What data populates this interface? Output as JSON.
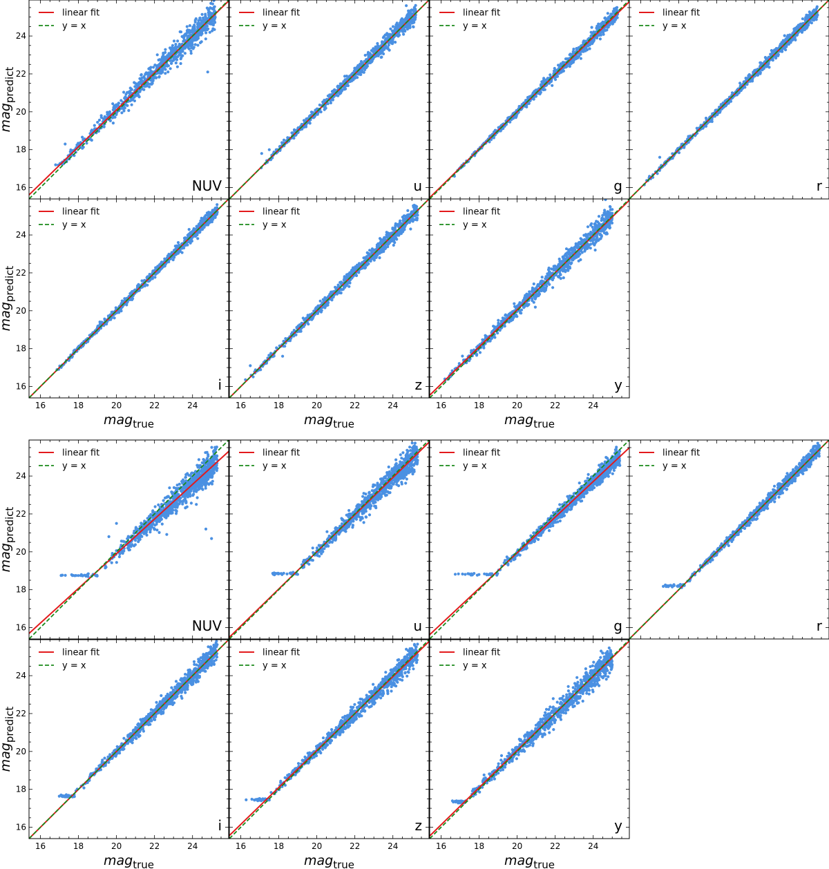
{
  "figure": {
    "xlabel_main": "mag",
    "xlabel_sub": "true",
    "ylabel_main": "mag",
    "ylabel_sub": "predict",
    "legend": {
      "fit_label": "linear fit",
      "identity_label": "y = x",
      "position": "upper-left"
    },
    "colors": {
      "points": "#4a90e2",
      "fit_line": "#e31a1c",
      "identity_line": "#1a8a1a",
      "axes": "#000000"
    },
    "axis_ticks": [
      "16",
      "18",
      "20",
      "22",
      "24"
    ],
    "scatter_note": "points are a dense cloud along the diagonal; only summary spread is recorded"
  },
  "chart_data": [
    {
      "type": "scatter",
      "group": "top",
      "band": "NUV",
      "title": "",
      "xlim": [
        15.4,
        25.9
      ],
      "ylim": [
        15.4,
        25.9
      ],
      "grid": false,
      "series": [
        {
          "name": "linear fit",
          "kind": "line",
          "slope": 0.975,
          "intercept": 0.6
        },
        {
          "name": "y = x",
          "kind": "line",
          "slope": 1,
          "intercept": 0
        }
      ],
      "spread": 0.55,
      "min_x": 16.8,
      "max_x": 25.2,
      "outliers": [
        [
          17.3,
          18.3
        ],
        [
          18.7,
          18.5
        ],
        [
          24.8,
          22.1
        ],
        [
          16.8,
          17.2
        ]
      ]
    },
    {
      "type": "scatter",
      "group": "top",
      "band": "u",
      "title": "",
      "xlim": [
        15.4,
        25.9
      ],
      "ylim": [
        15.4,
        25.9
      ],
      "grid": false,
      "series": [
        {
          "name": "linear fit",
          "kind": "line",
          "slope": 1.0,
          "intercept": 0.0
        },
        {
          "name": "y = x",
          "kind": "line",
          "slope": 1,
          "intercept": 0
        }
      ],
      "spread": 0.35,
      "min_x": 17.0,
      "max_x": 25.2,
      "outliers": [
        [
          17.1,
          17.8
        ],
        [
          17.5,
          18.0
        ]
      ]
    },
    {
      "type": "scatter",
      "group": "top",
      "band": "g",
      "title": "",
      "xlim": [
        15.4,
        25.9
      ],
      "ylim": [
        15.4,
        25.9
      ],
      "grid": false,
      "series": [
        {
          "name": "linear fit",
          "kind": "line",
          "slope": 0.985,
          "intercept": 0.3
        },
        {
          "name": "y = x",
          "kind": "line",
          "slope": 1,
          "intercept": 0
        }
      ],
      "spread": 0.28,
      "min_x": 16.6,
      "max_x": 25.3,
      "outliers": [
        [
          16.7,
          16.6
        ]
      ]
    },
    {
      "type": "scatter",
      "group": "top",
      "band": "r",
      "title": "",
      "xlim": [
        15.4,
        25.9
      ],
      "ylim": [
        15.4,
        25.9
      ],
      "grid": false,
      "series": [
        {
          "name": "linear fit",
          "kind": "line",
          "slope": 1.0,
          "intercept": 0.0
        },
        {
          "name": "y = x",
          "kind": "line",
          "slope": 1,
          "intercept": 0
        }
      ],
      "spread": 0.25,
      "min_x": 16.0,
      "max_x": 25.3,
      "outliers": [
        [
          17.0,
          17.6
        ]
      ]
    },
    {
      "type": "scatter",
      "group": "top",
      "band": "i",
      "title": "",
      "xlim": [
        15.4,
        25.9
      ],
      "ylim": [
        15.4,
        25.9
      ],
      "grid": false,
      "series": [
        {
          "name": "linear fit",
          "kind": "line",
          "slope": 1.0,
          "intercept": 0.0
        },
        {
          "name": "y = x",
          "kind": "line",
          "slope": 1,
          "intercept": 0
        }
      ],
      "spread": 0.25,
      "min_x": 16.8,
      "max_x": 25.3,
      "outliers": []
    },
    {
      "type": "scatter",
      "group": "top",
      "band": "z",
      "title": "",
      "xlim": [
        15.4,
        25.9
      ],
      "ylim": [
        15.4,
        25.9
      ],
      "grid": false,
      "series": [
        {
          "name": "linear fit",
          "kind": "line",
          "slope": 1.0,
          "intercept": 0.0
        },
        {
          "name": "y = x",
          "kind": "line",
          "slope": 1,
          "intercept": 0
        }
      ],
      "spread": 0.35,
      "min_x": 16.0,
      "max_x": 25.3,
      "outliers": [
        [
          16.5,
          17.1
        ],
        [
          18.2,
          17.6
        ]
      ]
    },
    {
      "type": "scatter",
      "group": "top",
      "band": "y",
      "title": "",
      "xlim": [
        15.4,
        25.9
      ],
      "ylim": [
        15.4,
        25.9
      ],
      "grid": false,
      "series": [
        {
          "name": "linear fit",
          "kind": "line",
          "slope": 0.98,
          "intercept": 0.45
        },
        {
          "name": "y = x",
          "kind": "line",
          "slope": 1,
          "intercept": 0
        }
      ],
      "spread": 0.5,
      "min_x": 16.0,
      "max_x": 25.0,
      "outliers": [
        [
          16.2,
          16.4
        ]
      ]
    },
    {
      "type": "scatter",
      "group": "bottom",
      "band": "NUV",
      "title": "",
      "xlim": [
        15.4,
        25.9
      ],
      "ylim": [
        15.4,
        25.9
      ],
      "grid": false,
      "series": [
        {
          "name": "linear fit",
          "kind": "line",
          "slope": 0.915,
          "intercept": 1.6
        },
        {
          "name": "y = x",
          "kind": "line",
          "slope": 1,
          "intercept": 0
        }
      ],
      "spread": 0.7,
      "min_x": 19.3,
      "max_x": 25.3,
      "floor_y": 18.75,
      "floor_x": [
        16.9,
        19.0
      ],
      "outliers": [
        [
          24.7,
          21.2
        ],
        [
          25.0,
          20.7
        ],
        [
          19.6,
          20.8
        ],
        [
          20.0,
          21.5
        ]
      ]
    },
    {
      "type": "scatter",
      "group": "bottom",
      "band": "u",
      "title": "",
      "xlim": [
        15.4,
        25.9
      ],
      "ylim": [
        15.4,
        25.9
      ],
      "grid": false,
      "series": [
        {
          "name": "linear fit",
          "kind": "line",
          "slope": 0.98,
          "intercept": 0.4
        },
        {
          "name": "y = x",
          "kind": "line",
          "slope": 1,
          "intercept": 0
        }
      ],
      "spread": 0.55,
      "min_x": 19.0,
      "max_x": 25.3,
      "floor_y": 18.85,
      "floor_x": [
        17.2,
        19.0
      ],
      "outliers": []
    },
    {
      "type": "scatter",
      "group": "bottom",
      "band": "g",
      "title": "",
      "xlim": [
        15.4,
        25.9
      ],
      "ylim": [
        15.4,
        25.9
      ],
      "grid": false,
      "series": [
        {
          "name": "linear fit",
          "kind": "line",
          "slope": 0.94,
          "intercept": 1.15
        },
        {
          "name": "y = x",
          "kind": "line",
          "slope": 1,
          "intercept": 0
        }
      ],
      "spread": 0.4,
      "min_x": 19.0,
      "max_x": 25.4,
      "floor_y": 18.8,
      "floor_x": [
        16.7,
        19.0
      ],
      "outliers": []
    },
    {
      "type": "scatter",
      "group": "bottom",
      "band": "r",
      "title": "",
      "xlim": [
        15.4,
        25.9
      ],
      "ylim": [
        15.4,
        25.9
      ],
      "grid": false,
      "series": [
        {
          "name": "linear fit",
          "kind": "line",
          "slope": 1.0,
          "intercept": 0.0
        },
        {
          "name": "y = x",
          "kind": "line",
          "slope": 1,
          "intercept": 0
        }
      ],
      "spread": 0.32,
      "min_x": 18.3,
      "max_x": 25.4,
      "floor_y": 18.2,
      "floor_x": [
        16.9,
        18.3
      ],
      "outliers": []
    },
    {
      "type": "scatter",
      "group": "bottom",
      "band": "i",
      "title": "",
      "xlim": [
        15.4,
        25.9
      ],
      "ylim": [
        15.4,
        25.9
      ],
      "grid": false,
      "series": [
        {
          "name": "linear fit",
          "kind": "line",
          "slope": 1.0,
          "intercept": 0.0
        },
        {
          "name": "y = x",
          "kind": "line",
          "slope": 1,
          "intercept": 0
        }
      ],
      "spread": 0.4,
      "min_x": 17.8,
      "max_x": 25.3,
      "floor_y": 17.65,
      "floor_x": [
        16.9,
        17.8
      ],
      "outliers": []
    },
    {
      "type": "scatter",
      "group": "bottom",
      "band": "z",
      "title": "",
      "xlim": [
        15.4,
        25.9
      ],
      "ylim": [
        15.4,
        25.9
      ],
      "grid": false,
      "series": [
        {
          "name": "linear fit",
          "kind": "line",
          "slope": 0.975,
          "intercept": 0.55
        },
        {
          "name": "y = x",
          "kind": "line",
          "slope": 1,
          "intercept": 0
        }
      ],
      "spread": 0.45,
      "min_x": 17.5,
      "max_x": 25.3,
      "floor_y": 17.45,
      "floor_x": [
        16.0,
        17.5
      ],
      "outliers": []
    },
    {
      "type": "scatter",
      "group": "bottom",
      "band": "y",
      "title": "",
      "xlim": [
        15.4,
        25.9
      ],
      "ylim": [
        15.4,
        25.9
      ],
      "grid": false,
      "series": [
        {
          "name": "linear fit",
          "kind": "line",
          "slope": 0.98,
          "intercept": 0.45
        },
        {
          "name": "y = x",
          "kind": "line",
          "slope": 1,
          "intercept": 0
        }
      ],
      "spread": 0.55,
      "min_x": 17.3,
      "max_x": 25.0,
      "floor_y": 17.35,
      "floor_x": [
        16.3,
        17.3
      ],
      "outliers": []
    }
  ]
}
